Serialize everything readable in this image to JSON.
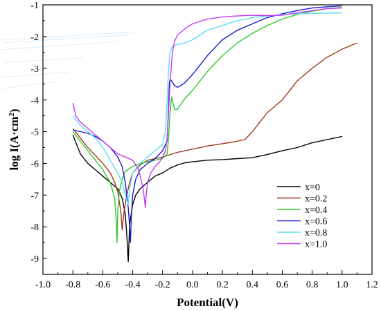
{
  "chart_data": {
    "type": "line",
    "title": "",
    "xlabel": "Potential(V)",
    "ylabel": "log I(A·cm²)",
    "ylabel_main": "log I(A·cm",
    "ylabel_sup": "2",
    "ylabel_end": ")",
    "xlim": [
      -1.0,
      1.2
    ],
    "ylim": [
      -9.5,
      -1.0
    ],
    "xticks": [
      -1.0,
      -0.8,
      -0.6,
      -0.4,
      -0.2,
      0.0,
      0.2,
      0.4,
      0.6,
      0.8,
      1.0,
      1.2
    ],
    "xtick_labels": [
      "-1.0",
      "-0.8",
      "-0.6",
      "-0.4",
      "-0.2",
      "0.0",
      "0.2",
      "0.4",
      "0.6",
      "0.8",
      "1.0",
      "1.2"
    ],
    "yticks": [
      -9,
      -8,
      -7,
      -6,
      -5,
      -4,
      -3,
      -2,
      -1
    ],
    "ytick_labels": [
      "-9",
      "-8",
      "-7",
      "-6",
      "-5",
      "-4",
      "-3",
      "-2",
      "-1"
    ],
    "grid": false,
    "legend_position": "bottom-right",
    "series": [
      {
        "name": "x=0",
        "color": "#000000",
        "x": [
          -0.8,
          -0.75,
          -0.7,
          -0.65,
          -0.6,
          -0.55,
          -0.5,
          -0.47,
          -0.45,
          -0.44,
          -0.43,
          -0.42,
          -0.4,
          -0.38,
          -0.35,
          -0.3,
          -0.25,
          -0.2,
          -0.15,
          -0.1,
          -0.05,
          0.0,
          0.1,
          0.2,
          0.3,
          0.4,
          0.5,
          0.6,
          0.7,
          0.8,
          0.9,
          1.0
        ],
        "y": [
          -5.1,
          -5.7,
          -6.0,
          -6.2,
          -6.4,
          -6.6,
          -6.8,
          -7.1,
          -7.6,
          -8.2,
          -9.1,
          -7.9,
          -7.3,
          -7.0,
          -6.8,
          -6.6,
          -6.4,
          -6.3,
          -6.15,
          -6.05,
          -5.98,
          -5.95,
          -5.9,
          -5.88,
          -5.85,
          -5.82,
          -5.72,
          -5.6,
          -5.5,
          -5.35,
          -5.25,
          -5.15
        ]
      },
      {
        "name": "x=0.2",
        "color": "#9e3a1a",
        "x": [
          -0.8,
          -0.75,
          -0.7,
          -0.65,
          -0.6,
          -0.55,
          -0.52,
          -0.5,
          -0.48,
          -0.47,
          -0.46,
          -0.44,
          -0.42,
          -0.4,
          -0.35,
          -0.3,
          -0.2,
          -0.1,
          0.0,
          0.1,
          0.2,
          0.3,
          0.35,
          0.4,
          0.45,
          0.5,
          0.55,
          0.6,
          0.65,
          0.7,
          0.8,
          0.9,
          1.0,
          1.1
        ],
        "y": [
          -4.9,
          -5.2,
          -5.5,
          -5.75,
          -6.0,
          -6.3,
          -6.6,
          -6.9,
          -7.5,
          -8.1,
          -7.6,
          -7.0,
          -6.6,
          -6.3,
          -6.05,
          -5.9,
          -5.8,
          -5.65,
          -5.55,
          -5.45,
          -5.38,
          -5.3,
          -5.25,
          -5.0,
          -4.7,
          -4.4,
          -4.2,
          -4.0,
          -3.7,
          -3.4,
          -3.0,
          -2.65,
          -2.4,
          -2.2
        ]
      },
      {
        "name": "x=0.4",
        "color": "#2fc82f",
        "x": [
          -0.8,
          -0.75,
          -0.7,
          -0.65,
          -0.6,
          -0.55,
          -0.52,
          -0.51,
          -0.505,
          -0.5,
          -0.49,
          -0.47,
          -0.45,
          -0.4,
          -0.35,
          -0.3,
          -0.25,
          -0.2,
          -0.17,
          -0.16,
          -0.15,
          -0.14,
          -0.13,
          -0.12,
          -0.1,
          -0.08,
          -0.05,
          0.0,
          0.05,
          0.1,
          0.15,
          0.2,
          0.3,
          0.4,
          0.5,
          0.6,
          0.7,
          0.8,
          0.9,
          1.0
        ],
        "y": [
          -5.0,
          -5.3,
          -5.6,
          -5.9,
          -6.2,
          -6.6,
          -7.1,
          -7.8,
          -8.5,
          -7.5,
          -6.9,
          -6.5,
          -6.25,
          -6.1,
          -6.0,
          -5.95,
          -5.9,
          -5.85,
          -5.7,
          -5.2,
          -4.4,
          -3.9,
          -4.1,
          -4.3,
          -4.3,
          -4.15,
          -3.95,
          -3.7,
          -3.4,
          -3.1,
          -2.85,
          -2.6,
          -2.2,
          -1.9,
          -1.65,
          -1.45,
          -1.3,
          -1.2,
          -1.12,
          -1.08
        ]
      },
      {
        "name": "x=0.6",
        "color": "#1a1ad0",
        "x": [
          -0.8,
          -0.75,
          -0.7,
          -0.65,
          -0.6,
          -0.55,
          -0.5,
          -0.47,
          -0.45,
          -0.43,
          -0.42,
          -0.415,
          -0.41,
          -0.4,
          -0.38,
          -0.35,
          -0.3,
          -0.25,
          -0.2,
          -0.17,
          -0.16,
          -0.155,
          -0.15,
          -0.14,
          -0.12,
          -0.1,
          -0.08,
          -0.05,
          0.0,
          0.05,
          0.1,
          0.15,
          0.2,
          0.3,
          0.4,
          0.5,
          0.6,
          0.7,
          0.8,
          0.9,
          1.0
        ],
        "y": [
          -4.95,
          -5.0,
          -5.05,
          -5.15,
          -5.3,
          -5.5,
          -5.8,
          -6.1,
          -6.6,
          -7.4,
          -8.0,
          -8.5,
          -7.8,
          -7.0,
          -6.5,
          -6.2,
          -6.0,
          -5.85,
          -5.6,
          -5.3,
          -4.2,
          -3.5,
          -3.35,
          -3.4,
          -3.55,
          -3.6,
          -3.55,
          -3.45,
          -3.2,
          -2.9,
          -2.6,
          -2.35,
          -2.1,
          -1.8,
          -1.6,
          -1.4,
          -1.28,
          -1.18,
          -1.1,
          -1.06,
          -1.03
        ]
      },
      {
        "name": "x=0.8",
        "color": "#5fd8f5",
        "x": [
          -0.8,
          -0.75,
          -0.7,
          -0.65,
          -0.6,
          -0.55,
          -0.5,
          -0.47,
          -0.45,
          -0.43,
          -0.42,
          -0.4,
          -0.35,
          -0.3,
          -0.25,
          -0.2,
          -0.18,
          -0.17,
          -0.16,
          -0.15,
          -0.14,
          -0.12,
          -0.1,
          -0.05,
          0.0,
          0.05,
          0.1,
          0.2,
          0.3,
          0.4,
          0.5,
          0.6,
          0.7,
          0.8,
          0.9,
          1.0
        ],
        "y": [
          -4.5,
          -4.8,
          -5.0,
          -5.2,
          -5.5,
          -5.9,
          -6.3,
          -6.6,
          -7.0,
          -7.3,
          -6.8,
          -6.3,
          -6.0,
          -5.8,
          -5.6,
          -5.4,
          -5.0,
          -4.0,
          -3.0,
          -2.5,
          -2.35,
          -2.28,
          -2.25,
          -2.2,
          -2.1,
          -1.95,
          -1.8,
          -1.65,
          -1.5,
          -1.4,
          -1.35,
          -1.3,
          -1.28,
          -1.27,
          -1.26,
          -1.25
        ]
      },
      {
        "name": "x=1.0",
        "color": "#c33af0",
        "x": [
          -0.8,
          -0.78,
          -0.75,
          -0.7,
          -0.65,
          -0.6,
          -0.55,
          -0.5,
          -0.45,
          -0.4,
          -0.36,
          -0.33,
          -0.32,
          -0.315,
          -0.31,
          -0.3,
          -0.28,
          -0.25,
          -0.22,
          -0.2,
          -0.18,
          -0.17,
          -0.16,
          -0.15,
          -0.14,
          -0.13,
          -0.12,
          -0.1,
          -0.05,
          0.0,
          0.1,
          0.2,
          0.3,
          0.4,
          0.5,
          0.6,
          0.7,
          0.8,
          0.9,
          1.0
        ],
        "y": [
          -4.1,
          -4.5,
          -4.7,
          -4.9,
          -5.1,
          -5.3,
          -5.5,
          -5.7,
          -5.8,
          -5.9,
          -6.2,
          -6.8,
          -7.2,
          -7.4,
          -7.0,
          -6.6,
          -6.3,
          -6.1,
          -5.95,
          -5.8,
          -5.6,
          -5.2,
          -4.4,
          -3.5,
          -2.8,
          -2.4,
          -2.15,
          -1.95,
          -1.75,
          -1.6,
          -1.45,
          -1.38,
          -1.35,
          -1.33,
          -1.34,
          -1.33,
          -1.25,
          -1.18,
          -1.12,
          -1.1
        ]
      }
    ]
  }
}
